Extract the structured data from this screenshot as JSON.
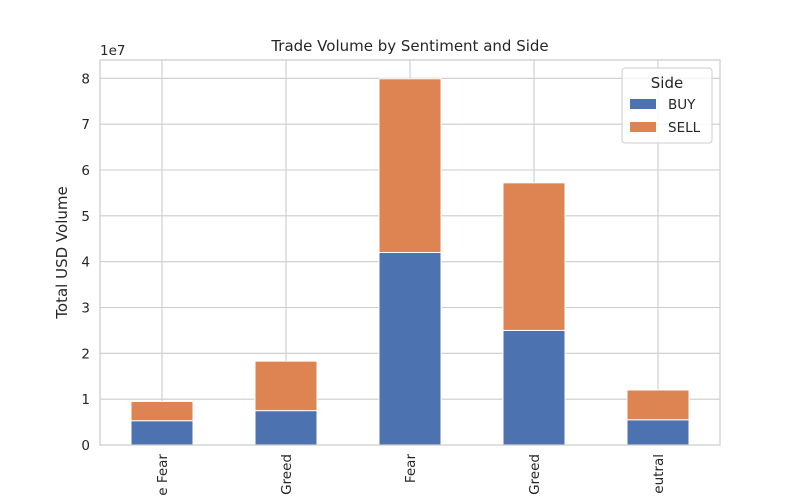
{
  "chart_data": {
    "type": "bar",
    "stacked": true,
    "title": "Trade Volume by Sentiment and Side",
    "xlabel": "",
    "ylabel": "Total USD Volume",
    "y_multiplier_label": "1e7",
    "ylim": [
      0,
      84000000
    ],
    "yticks": [
      0,
      10000000,
      20000000,
      30000000,
      40000000,
      50000000,
      60000000,
      70000000,
      80000000
    ],
    "ytick_labels": [
      "0",
      "1",
      "2",
      "3",
      "4",
      "5",
      "6",
      "7",
      "8"
    ],
    "categories": [
      "Extreme Fear",
      "Extreme Greed",
      "Fear",
      "Greed",
      "Neutral"
    ],
    "category_labels_visible": [
      "e Fear",
      "Greed",
      "Fear",
      "Greed",
      "eutral"
    ],
    "grid": true,
    "legend": {
      "title": "Side",
      "position": "top-right"
    },
    "series": [
      {
        "name": "BUY",
        "color": "#4c72b0",
        "values": [
          5300000,
          7500000,
          42000000,
          25000000,
          5500000
        ]
      },
      {
        "name": "SELL",
        "color": "#dd8452",
        "values": [
          4200000,
          10800000,
          37900000,
          32200000,
          6500000
        ]
      }
    ]
  }
}
